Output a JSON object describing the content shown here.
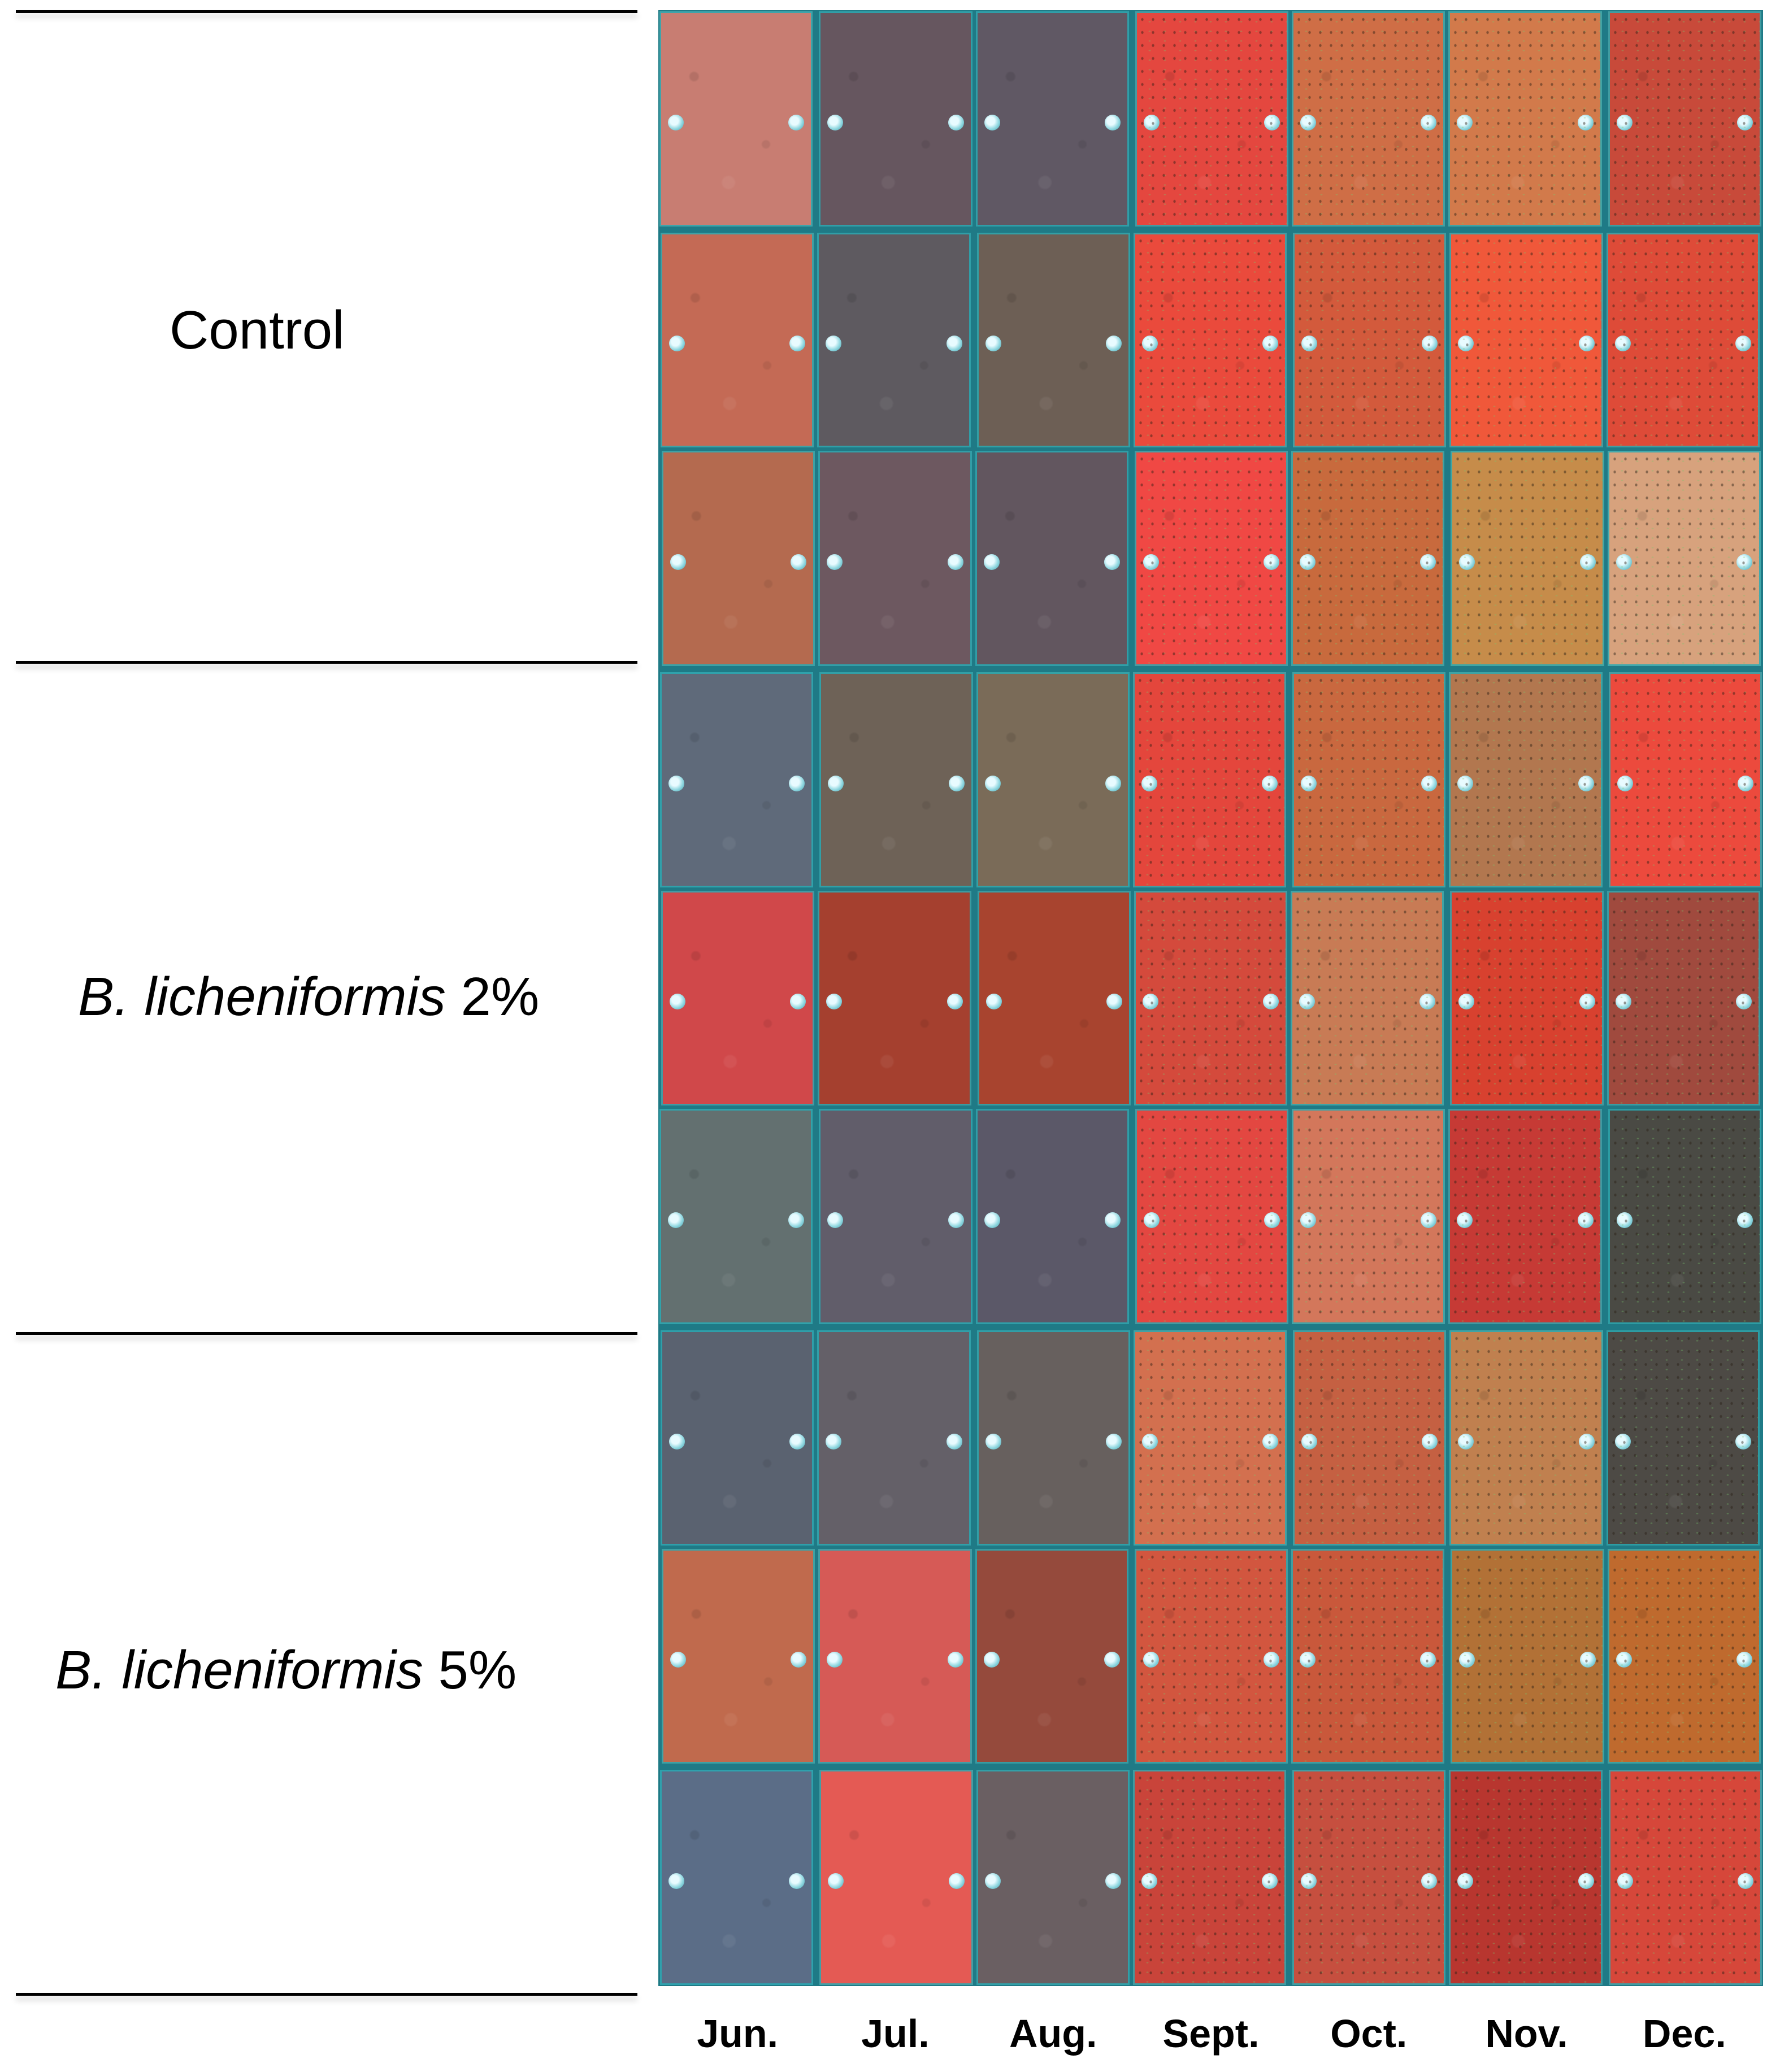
{
  "groups": [
    {
      "name": "",
      "species": "",
      "suffix": "Control",
      "rows": 3
    },
    {
      "name": "",
      "species": "B. licheniformis",
      "suffix": "2%",
      "rows": 3
    },
    {
      "name": "",
      "species": "B. licheniformis",
      "suffix": "5%",
      "rows": 3
    }
  ],
  "months": [
    "Jun.",
    "Jul.",
    "Aug.",
    "Sept.",
    "Oct.",
    "Nov.",
    "Dec."
  ],
  "panel_colors": [
    [
      "#c87d72",
      "#66565f",
      "#605864",
      "#e4473f",
      "#cf6e46",
      "#d27a4b",
      "#c84a3a"
    ],
    [
      "#c46a55",
      "#5e5a60",
      "#6d5f55",
      "#ea4a3c",
      "#d35a3c",
      "#f0583a",
      "#de4b38"
    ],
    [
      "#b46a4f",
      "#6d5860",
      "#62565f",
      "#f04844",
      "#c86a3d",
      "#c68c4a",
      "#d7a27d"
    ],
    [
      "#5f6a7a",
      "#6e6257",
      "#7a6b58",
      "#e4463c",
      "#c9683f",
      "#b2774f",
      "#ec4a3d"
    ],
    [
      "#d0484a",
      "#a5402f",
      "#a8442f",
      "#d44a3c",
      "#c87b55",
      "#d8412f",
      "#a04a3e"
    ],
    [
      "#637070",
      "#615d6a",
      "#5b5868",
      "#e34741",
      "#d3775b",
      "#c63a35",
      "#4a4a44"
    ],
    [
      "#5a6270",
      "#646068",
      "#67605e",
      "#d3704f",
      "#c56042",
      "#c0804f",
      "#4d4a45"
    ],
    [
      "#c06a4d",
      "#d65a56",
      "#954a3c",
      "#d2563f",
      "#c9583b",
      "#b27136",
      "#bf6a2e"
    ],
    [
      "#5b6d87",
      "#e45a54",
      "#6a5f62",
      "#c9443a",
      "#c64f3f",
      "#b8362f",
      "#d6473a"
    ]
  ],
  "spotty_from_month_index": 3
}
